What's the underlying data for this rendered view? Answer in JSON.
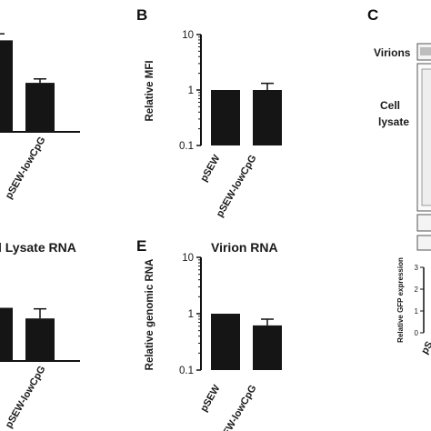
{
  "panels": {
    "A": {
      "letter": "",
      "title": "",
      "categories": [
        "pSEW-lowCpG"
      ]
    },
    "B": {
      "letter": "B",
      "ylabel": "Relative MFI",
      "ticks": [
        "10",
        "1",
        "0.1"
      ],
      "categories": [
        "pSEW",
        "pSEW-lowCpG"
      ]
    },
    "C": {
      "letter": "C",
      "virions_label": "Virions",
      "cell_label": "Cell",
      "lysate_label": "lysate",
      "ylabel": "Relative GFP expression",
      "ticks": [
        "3",
        "2",
        "1",
        "0"
      ],
      "category_fragment": "pS"
    },
    "D": {
      "title": "l Lysate RNA",
      "categories": [
        "pSEW-lowCpG"
      ]
    },
    "E": {
      "letter": "E",
      "title": "Virion RNA",
      "ylabel": "Relative genomic RNA",
      "ticks": [
        "10",
        "1",
        "0.1"
      ],
      "categories": [
        "pSEW",
        "pSEW-lowCpG"
      ]
    }
  },
  "chart_data": [
    {
      "panel": "A",
      "type": "bar",
      "categories": [
        "",
        "pSEW-lowCpG"
      ],
      "values": [
        1.4,
        0.75
      ],
      "errors": [
        0.1,
        0.06
      ]
    },
    {
      "panel": "B",
      "type": "bar",
      "title": "",
      "xlabel": "",
      "ylabel": "Relative MFI",
      "yscale": "log",
      "ylim": [
        0.1,
        10
      ],
      "categories": [
        "pSEW",
        "pSEW-lowCpG"
      ],
      "values": [
        1.0,
        1.0
      ],
      "errors": [
        0,
        0.32
      ]
    },
    {
      "panel": "D",
      "type": "bar",
      "title": "l Lysate RNA",
      "categories": [
        "",
        "pSEW-lowCpG"
      ],
      "values": [
        1.0,
        0.8
      ],
      "errors": [
        0,
        0.18
      ]
    },
    {
      "panel": "E",
      "type": "bar",
      "title": "Virion RNA",
      "xlabel": "",
      "ylabel": "Relative genomic RNA",
      "yscale": "log",
      "ylim": [
        0.1,
        10
      ],
      "categories": [
        "pSEW",
        "pSEW-lowCpG"
      ],
      "values": [
        1.0,
        0.62
      ],
      "errors": [
        0,
        0.18
      ]
    }
  ]
}
